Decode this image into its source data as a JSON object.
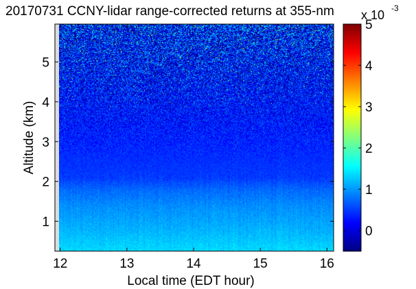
{
  "chart_data": {
    "type": "heatmap",
    "title": "20170731 CCNY-lidar range-corrected returns at 355-nm",
    "xlabel": "Local time (EDT hour)",
    "ylabel": "Altitude (km)",
    "xlim": [
      11.92,
      16.1
    ],
    "ylim": [
      0.25,
      5.95
    ],
    "xticks": [
      12,
      13,
      14,
      15,
      16
    ],
    "yticks": [
      1,
      2,
      3,
      4,
      5
    ],
    "colorbar": {
      "colormap": "jet",
      "range": [
        -0.5,
        5
      ],
      "ticks": [
        0,
        1,
        2,
        3,
        4,
        5
      ],
      "exponent_label": "x 10",
      "exponent": "-3"
    },
    "profile": [
      {
        "altitude": 0.3,
        "value": 1.35
      },
      {
        "altitude": 0.8,
        "value": 1.15
      },
      {
        "altitude": 1.4,
        "value": 0.95
      },
      {
        "altitude": 1.8,
        "value": 0.75
      },
      {
        "altitude": 2.1,
        "value": 0.5
      },
      {
        "altitude": 2.8,
        "value": 0.4
      },
      {
        "altitude": 3.5,
        "value": 0.3
      },
      {
        "altitude": 4.5,
        "value": 0.25
      },
      {
        "altitude": 5.9,
        "value": 0.25
      }
    ]
  }
}
